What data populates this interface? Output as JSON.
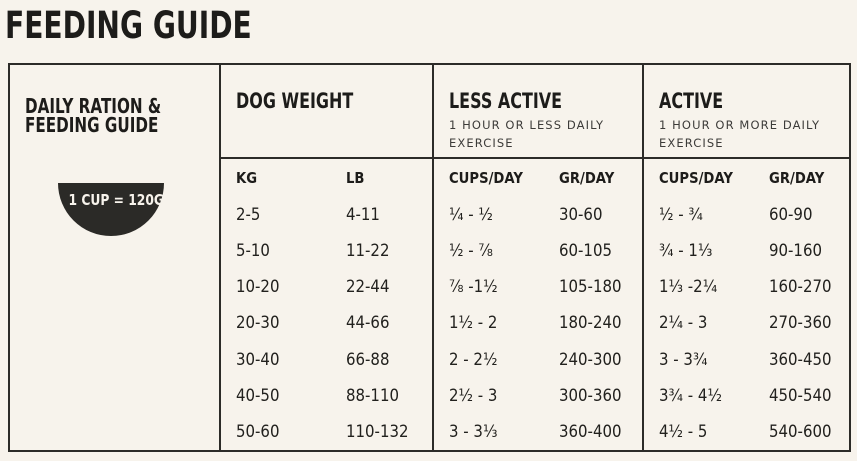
{
  "page": {
    "title": "FEEDING GUIDE",
    "background": "#f7f3ec",
    "ink": "#1d1c1a",
    "badge_bg": "#2b2a27"
  },
  "sidebar": {
    "heading_line1": "DAILY RATION &",
    "heading_line2": "FEEDING GUIDE",
    "badge": "1 CUP = 120G"
  },
  "table": {
    "sections": [
      {
        "title": "DOG WEIGHT",
        "subtitle": "",
        "col1": "KG",
        "col2": "LB"
      },
      {
        "title": "LESS ACTIVE",
        "subtitle": "1 HOUR OR LESS DAILY EXERCISE",
        "col1": "CUPS/DAY",
        "col2": "GR/DAY"
      },
      {
        "title": "ACTIVE",
        "subtitle": "1 HOUR OR MORE DAILY EXERCISE",
        "col1": "CUPS/DAY",
        "col2": "GR/DAY"
      }
    ],
    "rows": [
      {
        "kg": "2-5",
        "lb": "4-11",
        "la_cups": "¼ - ½",
        "la_gr": "30-60",
        "a_cups": "½ - ¾",
        "a_gr": "60-90"
      },
      {
        "kg": "5-10",
        "lb": "11-22",
        "la_cups": "½ - ⅞",
        "la_gr": "60-105",
        "a_cups": "¾ - 1⅓",
        "a_gr": "90-160"
      },
      {
        "kg": "10-20",
        "lb": "22-44",
        "la_cups": "⅞ -1½",
        "la_gr": "105-180",
        "a_cups": "1⅓ -2¼",
        "a_gr": "160-270"
      },
      {
        "kg": "20-30",
        "lb": "44-66",
        "la_cups": "1½ - 2",
        "la_gr": "180-240",
        "a_cups": "2¼ - 3",
        "a_gr": "270-360"
      },
      {
        "kg": "30-40",
        "lb": "66-88",
        "la_cups": "2 - 2½",
        "la_gr": "240-300",
        "a_cups": "3 - 3¾",
        "a_gr": "360-450"
      },
      {
        "kg": "40-50",
        "lb": "88-110",
        "la_cups": "2½ - 3",
        "la_gr": "300-360",
        "a_cups": "3¾ - 4½",
        "a_gr": "450-540"
      },
      {
        "kg": "50-60",
        "lb": "110-132",
        "la_cups": "3 - 3⅓",
        "la_gr": "360-400",
        "a_cups": "4½ - 5",
        "a_gr": "540-600"
      }
    ]
  }
}
